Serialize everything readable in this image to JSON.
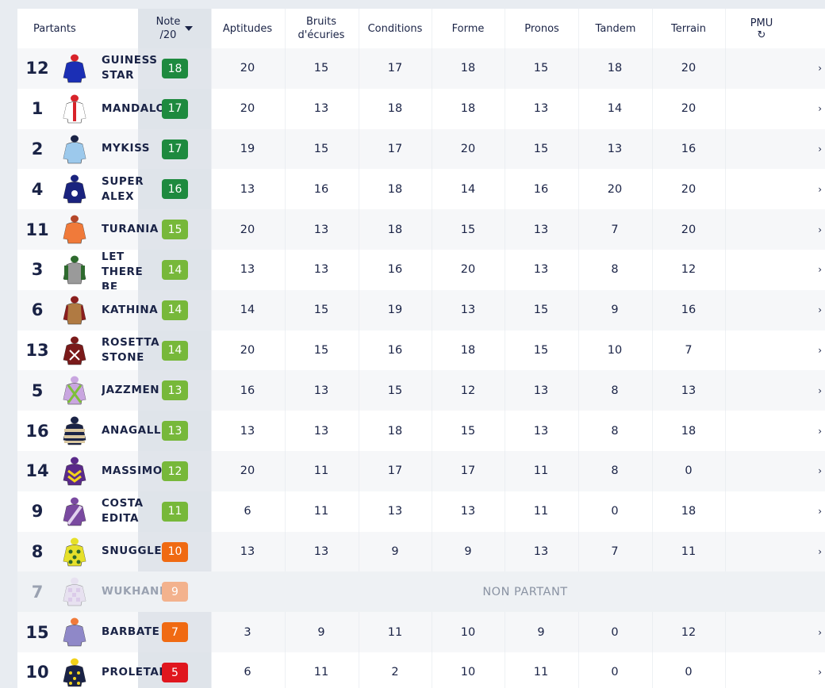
{
  "header": {
    "partants": "Partants",
    "note_line1": "Note",
    "note_line2": "/20",
    "aptitudes": "Aptitudes",
    "bruits_line1": "Bruits",
    "bruits_line2": "d'écuries",
    "conditions": "Conditions",
    "forme": "Forme",
    "pronos": "Pronos",
    "tandem": "Tandem",
    "terrain": "Terrain",
    "pmu": "PMU",
    "refresh_icon": "↻"
  },
  "colors": {
    "dark_green": "#1e8a3f",
    "light_green": "#77b83a",
    "orange": "#f06a12",
    "light_orange": "#f3b28d",
    "red": "#e0161e"
  },
  "rows": [
    {
      "num": "12",
      "name": "GUINESS STAR",
      "note": "18",
      "note_color": "dark_green",
      "silk": "silk-blue-red-cap",
      "aptitudes": "20",
      "bruits": "15",
      "conditions": "17",
      "forme": "18",
      "pronos": "15",
      "tandem": "18",
      "terrain": "20",
      "chevron": "›"
    },
    {
      "num": "1",
      "name": "MANDALORIAN",
      "note": "17",
      "note_color": "dark_green",
      "silk": "silk-white-red-stripe",
      "aptitudes": "20",
      "bruits": "13",
      "conditions": "18",
      "forme": "18",
      "pronos": "13",
      "tandem": "14",
      "terrain": "20",
      "chevron": "›"
    },
    {
      "num": "2",
      "name": "MYKISS",
      "note": "17",
      "note_color": "dark_green",
      "silk": "silk-light-blue",
      "aptitudes": "19",
      "bruits": "15",
      "conditions": "17",
      "forme": "20",
      "pronos": "15",
      "tandem": "13",
      "terrain": "16",
      "chevron": "›"
    },
    {
      "num": "4",
      "name": "SUPER ALEX",
      "note": "16",
      "note_color": "dark_green",
      "silk": "silk-navy-white-dot",
      "aptitudes": "13",
      "bruits": "16",
      "conditions": "18",
      "forme": "14",
      "pronos": "16",
      "tandem": "20",
      "terrain": "20",
      "chevron": "›"
    },
    {
      "num": "11",
      "name": "TURANIA",
      "note": "15",
      "note_color": "light_green",
      "silk": "silk-orange",
      "aptitudes": "20",
      "bruits": "13",
      "conditions": "18",
      "forme": "15",
      "pronos": "13",
      "tandem": "7",
      "terrain": "20",
      "chevron": "›"
    },
    {
      "num": "3",
      "name": "LET THERE BE ROCK",
      "note": "14",
      "note_color": "light_green",
      "silk": "silk-grey-green",
      "aptitudes": "13",
      "bruits": "13",
      "conditions": "16",
      "forme": "20",
      "pronos": "13",
      "tandem": "8",
      "terrain": "12",
      "chevron": "›"
    },
    {
      "num": "6",
      "name": "KATHINA",
      "note": "14",
      "note_color": "light_green",
      "silk": "silk-tan-maroon",
      "aptitudes": "14",
      "bruits": "15",
      "conditions": "19",
      "forme": "13",
      "pronos": "15",
      "tandem": "9",
      "terrain": "16",
      "chevron": "›"
    },
    {
      "num": "13",
      "name": "ROSETTA STONE",
      "note": "14",
      "note_color": "light_green",
      "silk": "silk-maroon-white",
      "aptitudes": "20",
      "bruits": "15",
      "conditions": "16",
      "forme": "18",
      "pronos": "15",
      "tandem": "10",
      "terrain": "7",
      "chevron": "›"
    },
    {
      "num": "5",
      "name": "JAZZMEN",
      "note": "13",
      "note_color": "light_green",
      "silk": "silk-lilac-green-cross",
      "aptitudes": "16",
      "bruits": "13",
      "conditions": "15",
      "forme": "12",
      "pronos": "13",
      "tandem": "8",
      "terrain": "13",
      "chevron": "›"
    },
    {
      "num": "16",
      "name": "ANAGALLIS",
      "note": "13",
      "note_color": "light_green",
      "silk": "silk-navy-tan-hoops",
      "aptitudes": "13",
      "bruits": "13",
      "conditions": "18",
      "forme": "15",
      "pronos": "13",
      "tandem": "8",
      "terrain": "18",
      "chevron": "›"
    },
    {
      "num": "14",
      "name": "MASSIMO",
      "note": "12",
      "note_color": "light_green",
      "silk": "silk-purple-yellow-chevrons",
      "aptitudes": "20",
      "bruits": "11",
      "conditions": "17",
      "forme": "17",
      "pronos": "11",
      "tandem": "8",
      "terrain": "0",
      "chevron": "›"
    },
    {
      "num": "9",
      "name": "COSTA EDITA",
      "note": "11",
      "note_color": "light_green",
      "silk": "silk-purple-sash",
      "aptitudes": "6",
      "bruits": "11",
      "conditions": "13",
      "forme": "13",
      "pronos": "11",
      "tandem": "0",
      "terrain": "18",
      "chevron": "›"
    },
    {
      "num": "8",
      "name": "SNUGGLES",
      "note": "10",
      "note_color": "orange",
      "silk": "silk-yellow-green-spots",
      "aptitudes": "13",
      "bruits": "13",
      "conditions": "9",
      "forme": "9",
      "pronos": "13",
      "tandem": "7",
      "terrain": "11",
      "chevron": "›"
    },
    {
      "num": "7",
      "name": "WUKHANN",
      "note": "9",
      "note_color": "light_orange",
      "silk": "silk-lilac-check",
      "non_partant": "NON PARTANT"
    },
    {
      "num": "15",
      "name": "BARBATE",
      "note": "7",
      "note_color": "orange",
      "silk": "silk-lavender-orange-cap",
      "aptitudes": "3",
      "bruits": "9",
      "conditions": "11",
      "forme": "10",
      "pronos": "9",
      "tandem": "0",
      "terrain": "12",
      "chevron": "›"
    },
    {
      "num": "10",
      "name": "PROLETARIAT",
      "note": "5",
      "note_color": "red",
      "silk": "silk-navy-yellow-stars",
      "aptitudes": "6",
      "bruits": "11",
      "conditions": "2",
      "forme": "10",
      "pronos": "11",
      "tandem": "0",
      "terrain": "0",
      "chevron": "›"
    }
  ]
}
